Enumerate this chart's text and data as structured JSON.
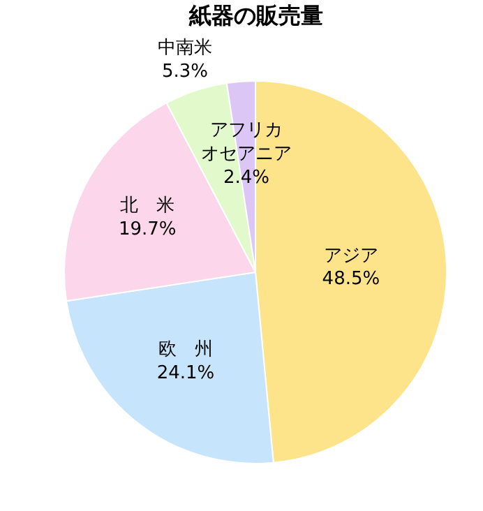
{
  "chart_data": {
    "type": "pie",
    "title": "紙器の販売量",
    "categories": [
      "アジア",
      "欧　州",
      "北　米",
      "中南米",
      "アフリカオセアニア"
    ],
    "values": [
      48.5,
      24.1,
      19.7,
      5.3,
      2.4
    ],
    "value_labels": [
      "48.5%",
      "24.1%",
      "19.7%",
      "5.3%",
      "2.4%"
    ],
    "colors": [
      "#fde38a",
      "#c6e4fb",
      "#fcd6ea",
      "#e2f9cc",
      "#dcc6f6"
    ],
    "legend": false
  }
}
